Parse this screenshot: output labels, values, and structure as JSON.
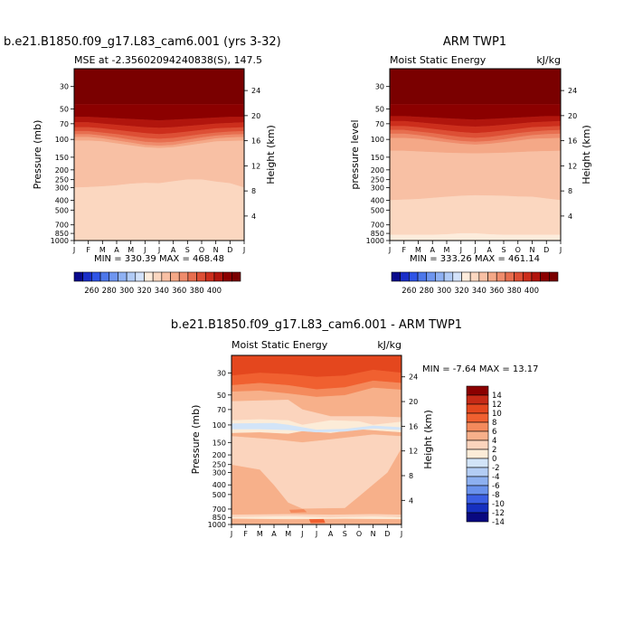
{
  "figure": {
    "panel1": {
      "title": "b.e21.B1850.f09_g17.L83_cam6.001 (yrs 3-32)",
      "subtitle": "MSE at -2.35602094240838(S), 147.5",
      "units": "",
      "ylabel": "Pressure (mb)",
      "y2label": "Height (km)",
      "minmax": "MIN = 330.39   MAX = 468.48"
    },
    "panel2": {
      "title": "ARM TWP1",
      "subtitle": "Moist Static Energy",
      "units": "kJ/kg",
      "ylabel": "pressure level",
      "y2label": "Height (km)",
      "minmax": "MIN = 333.26   MAX = 461.14"
    },
    "panel3": {
      "title": "b.e21.B1850.f09_g17.L83_cam6.001 - ARM TWP1",
      "subtitle": "Moist Static Energy",
      "units": "kJ/kg",
      "ylabel": "Pressure (mb)",
      "y2label": "Height (km)",
      "minmax": "MIN =   -7.64   MAX =   13.17"
    }
  },
  "chart_data": [
    {
      "type": "heatmap",
      "id": "model",
      "title": "b.e21.B1850.f09_g17.L83_cam6.001 (yrs 3-32)",
      "variable": "Moist Static Energy (MSE)",
      "units": "kJ/kg",
      "x_ticks": [
        "J",
        "F",
        "M",
        "A",
        "M",
        "J",
        "J",
        "A",
        "S",
        "O",
        "N",
        "D",
        "J"
      ],
      "y_ticks": [
        30,
        50,
        70,
        100,
        150,
        200,
        250,
        300,
        400,
        500,
        700,
        850,
        1000
      ],
      "ylim": [
        1000,
        20
      ],
      "yscale": "log",
      "height_ticks_km": [
        4,
        8,
        12,
        16,
        20,
        24
      ],
      "boundaries_mb": [
        [
          45,
          45,
          45,
          45,
          45,
          45,
          45,
          45,
          45,
          45,
          45,
          45,
          45
        ],
        [
          60,
          60,
          61,
          62,
          63,
          64,
          65,
          64,
          63,
          62,
          61,
          60,
          60
        ],
        [
          68,
          68,
          70,
          72,
          74,
          76,
          77,
          76,
          74,
          72,
          70,
          69,
          68
        ],
        [
          76,
          76,
          78,
          81,
          84,
          87,
          89,
          87,
          84,
          81,
          78,
          77,
          76
        ],
        [
          83,
          83,
          86,
          89,
          93,
          97,
          99,
          97,
          93,
          89,
          86,
          84,
          83
        ],
        [
          89,
          89,
          92,
          96,
          101,
          106,
          108,
          106,
          101,
          96,
          92,
          90,
          89
        ],
        [
          95,
          95,
          98,
          103,
          108,
          114,
          116,
          114,
          108,
          103,
          98,
          96,
          95
        ],
        [
          103,
          103,
          105,
          110,
          115,
          120,
          122,
          120,
          115,
          110,
          105,
          104,
          103
        ],
        [
          300,
          297,
          292,
          285,
          275,
          270,
          272,
          260,
          250,
          250,
          262,
          272,
          300
        ],
        [
          1000,
          1000,
          1000,
          1000,
          1000,
          1000,
          1000,
          1000,
          1000,
          1000,
          1000,
          1000,
          1000
        ]
      ],
      "band_level_index": [
        18,
        17,
        16,
        15,
        14,
        13,
        12,
        11,
        10,
        9
      ],
      "minmax": "MIN = 330.39   MAX = 468.48",
      "min": 330.39,
      "max": 468.48
    },
    {
      "type": "heatmap",
      "id": "obs",
      "title": "ARM TWP1",
      "variable": "Moist Static Energy",
      "units": "kJ/kg",
      "x_ticks": [
        "J",
        "F",
        "M",
        "A",
        "M",
        "J",
        "J",
        "A",
        "S",
        "O",
        "N",
        "D",
        "J"
      ],
      "y_ticks": [
        30,
        50,
        70,
        100,
        150,
        200,
        250,
        300,
        400,
        500,
        700,
        850,
        1000
      ],
      "ylim": [
        1000,
        20
      ],
      "yscale": "log",
      "height_ticks_km": [
        4,
        8,
        12,
        16,
        20,
        24
      ],
      "boundaries_mb": [
        [
          45,
          45,
          45,
          45,
          45,
          45,
          45,
          45,
          45,
          45,
          45,
          45,
          45
        ],
        [
          59,
          59,
          60,
          61,
          62,
          63,
          64,
          63,
          62,
          61,
          60,
          59,
          59
        ],
        [
          66,
          66,
          68,
          70,
          72,
          74,
          75,
          74,
          72,
          70,
          68,
          67,
          66
        ],
        [
          74,
          74,
          76,
          79,
          82,
          85,
          87,
          85,
          82,
          79,
          76,
          75,
          74
        ],
        [
          81,
          81,
          84,
          87,
          91,
          95,
          97,
          95,
          91,
          87,
          84,
          82,
          81
        ],
        [
          88,
          88,
          91,
          95,
          100,
          104,
          106,
          104,
          100,
          95,
          91,
          89,
          88
        ],
        [
          97,
          97,
          99,
          103,
          107,
          111,
          113,
          111,
          107,
          103,
          99,
          98,
          97
        ],
        [
          130,
          130,
          132,
          134,
          136,
          137,
          138,
          137,
          136,
          134,
          132,
          131,
          130
        ],
        [
          400,
          395,
          390,
          380,
          370,
          362,
          358,
          360,
          362,
          368,
          370,
          385,
          400
        ],
        [
          880,
          880,
          880,
          880,
          870,
          850,
          850,
          870,
          880,
          880,
          880,
          880,
          880
        ],
        [
          1000,
          1000,
          1000,
          1000,
          1000,
          1000,
          1000,
          1000,
          1000,
          1000,
          1000,
          1000,
          1000
        ]
      ],
      "band_level_index": [
        18,
        17,
        16,
        15,
        14,
        13,
        12,
        11,
        10,
        9,
        8
      ],
      "minmax": "MIN = 333.26   MAX = 461.14",
      "min": 333.26,
      "max": 461.14
    },
    {
      "type": "heatmap",
      "id": "diff",
      "title": "b.e21.B1850.f09_g17.L83_cam6.001 - ARM TWP1",
      "variable": "Moist Static Energy",
      "units": "kJ/kg",
      "x_ticks": [
        "J",
        "F",
        "M",
        "A",
        "M",
        "J",
        "J",
        "A",
        "S",
        "O",
        "N",
        "D",
        "J"
      ],
      "y_ticks": [
        30,
        50,
        70,
        100,
        150,
        200,
        250,
        300,
        400,
        500,
        700,
        850,
        1000
      ],
      "ylim": [
        1000,
        20
      ],
      "yscale": "log",
      "height_ticks_km": [
        4,
        8,
        12,
        16,
        20,
        24
      ],
      "background_level_index": 5,
      "regions": [
        {
          "level_index": 2,
          "points": [
            [
              0,
              20
            ],
            [
              12,
              20
            ],
            [
              12,
              30
            ],
            [
              10,
              28
            ],
            [
              8,
              32
            ],
            [
              6,
              33
            ],
            [
              4,
              31
            ],
            [
              2,
              30
            ],
            [
              0,
              32
            ]
          ]
        },
        {
          "level_index": 3,
          "points": [
            [
              0,
              32
            ],
            [
              2,
              30
            ],
            [
              4,
              31
            ],
            [
              6,
              33
            ],
            [
              8,
              32
            ],
            [
              10,
              28
            ],
            [
              12,
              30
            ],
            [
              12,
              38
            ],
            [
              10,
              36
            ],
            [
              8,
              42
            ],
            [
              6,
              44
            ],
            [
              4,
              40
            ],
            [
              2,
              38
            ],
            [
              0,
              40
            ]
          ]
        },
        {
          "level_index": 4,
          "points": [
            [
              0,
              40
            ],
            [
              2,
              38
            ],
            [
              4,
              40
            ],
            [
              6,
              44
            ],
            [
              8,
              42
            ],
            [
              10,
              36
            ],
            [
              12,
              38
            ],
            [
              12,
              44
            ],
            [
              10,
              42
            ],
            [
              8,
              50
            ],
            [
              6,
              52
            ],
            [
              4,
              48
            ],
            [
              2,
              45
            ],
            [
              0,
              46
            ]
          ]
        },
        {
          "level_index": 6,
          "points": [
            [
              0,
              58
            ],
            [
              4,
              56
            ],
            [
              5,
              70
            ],
            [
              7,
              82
            ],
            [
              10,
              82
            ],
            [
              12,
              84
            ],
            [
              12,
              93
            ],
            [
              10,
              100
            ],
            [
              9,
              92
            ],
            [
              7,
              90
            ],
            [
              5,
              100
            ],
            [
              4,
              90
            ],
            [
              2,
              88
            ],
            [
              0,
              90
            ]
          ]
        },
        {
          "level_index": 7,
          "points": [
            [
              0,
              90
            ],
            [
              2,
              88
            ],
            [
              4,
              90
            ],
            [
              5,
              100
            ],
            [
              7,
              90
            ],
            [
              9,
              92
            ],
            [
              10,
              100
            ],
            [
              12,
              93
            ],
            [
              12,
              118
            ],
            [
              9,
              110
            ],
            [
              7,
              120
            ],
            [
              5,
              115
            ],
            [
              4,
              122
            ],
            [
              2,
              118
            ],
            [
              0,
              120
            ]
          ]
        },
        {
          "level_index": 8,
          "points": [
            [
              0,
              97
            ],
            [
              3,
              96
            ],
            [
              4,
              100
            ],
            [
              6,
              112
            ],
            [
              8,
              110
            ],
            [
              10,
              102
            ],
            [
              12,
              106
            ],
            [
              12,
              112
            ],
            [
              10,
              108
            ],
            [
              8,
              116
            ],
            [
              6,
              118
            ],
            [
              4,
              112
            ],
            [
              2,
              110
            ],
            [
              0,
              110
            ]
          ]
        },
        {
          "level_index": 6,
          "points": [
            [
              0,
              130
            ],
            [
              3,
              140
            ],
            [
              5,
              150
            ],
            [
              7,
              140
            ],
            [
              10,
              125
            ],
            [
              12,
              130
            ],
            [
              12,
              170
            ],
            [
              11,
              300
            ],
            [
              9,
              520
            ],
            [
              8,
              680
            ],
            [
              5,
              690
            ],
            [
              4,
              600
            ],
            [
              3,
              400
            ],
            [
              2,
              280
            ],
            [
              0,
              250
            ]
          ]
        },
        {
          "level_index": 6,
          "points": [
            [
              0,
              800
            ],
            [
              4,
              790
            ],
            [
              7,
              800
            ],
            [
              10,
              790
            ],
            [
              12,
              800
            ],
            [
              12,
              830
            ],
            [
              9,
              845
            ],
            [
              6,
              840
            ],
            [
              3,
              845
            ],
            [
              0,
              840
            ]
          ]
        },
        {
          "level_index": 7,
          "points": [
            [
              0,
              845
            ],
            [
              4,
              830
            ],
            [
              7,
              850
            ],
            [
              10,
              835
            ],
            [
              12,
              845
            ],
            [
              12,
              880
            ],
            [
              8,
              872
            ],
            [
              4,
              880
            ],
            [
              0,
              870
            ]
          ]
        },
        {
          "level_index": 4,
          "points": [
            [
              4.1,
              715
            ],
            [
              5.1,
              705
            ],
            [
              5.3,
              750
            ],
            [
              4.2,
              760
            ]
          ]
        },
        {
          "level_index": 3,
          "points": [
            [
              5.5,
              890
            ],
            [
              6.5,
              885
            ],
            [
              6.6,
              960
            ],
            [
              5.6,
              965
            ]
          ]
        }
      ],
      "minmax": "MIN =   -7.64   MAX =   13.17",
      "min": -7.64,
      "max": 13.17
    }
  ],
  "colorbar_seq": {
    "labels": [
      "260",
      "280",
      "300",
      "320",
      "340",
      "360",
      "380",
      "400"
    ],
    "colors": [
      "#0a0a8c",
      "#1a2ec8",
      "#2e54e6",
      "#4d77ea",
      "#6e95ef",
      "#8fb1f3",
      "#b1cbf6",
      "#d3e2fa",
      "#fdecdc",
      "#fbd7c0",
      "#f8c0a4",
      "#f4a887",
      "#ef8c6c",
      "#e76e4f",
      "#dd4f35",
      "#cc2e1c",
      "#b1150d",
      "#8b0000",
      "#7a0000"
    ]
  },
  "colorbar_diff": {
    "labels": [
      "14",
      "12",
      "10",
      "8",
      "6",
      "4",
      "2",
      "0",
      "-2",
      "-4",
      "-6",
      "-8",
      "-10",
      "-12",
      "-14"
    ],
    "colors": [
      "#8b0000",
      "#c62a16",
      "#e4471e",
      "#f06030",
      "#f48a5c",
      "#f7b08a",
      "#fbd4bd",
      "#fcecd8",
      "#d2e4f8",
      "#b3cdf4",
      "#8db0f0",
      "#6a92ec",
      "#3b5fe4",
      "#1630c0",
      "#090980"
    ]
  }
}
